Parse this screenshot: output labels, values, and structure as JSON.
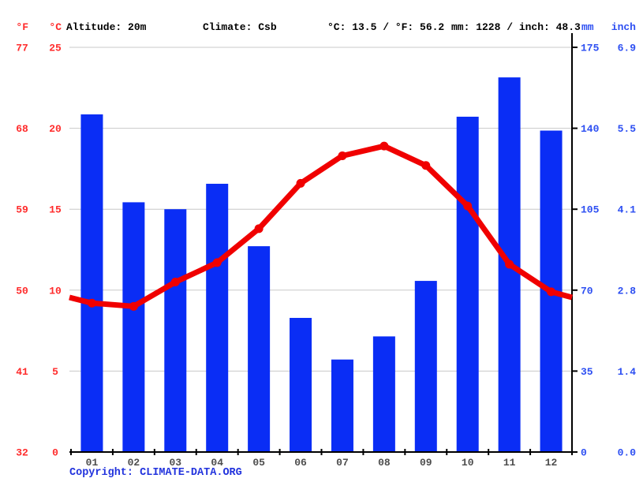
{
  "header": {
    "temp_f_label": "°F",
    "temp_c_label": "°C",
    "altitude": "Altitude: 20m",
    "climate": "Climate: Csb",
    "avg_temp": "°C: 13.5 / °F: 56.2",
    "precip_total": "mm: 1228 / inch: 48.3",
    "mm_label": "mm",
    "inch_label": "inch"
  },
  "chart_data": {
    "type": "bar",
    "subtype": "climograph: precipitation bars + temperature line",
    "categories": [
      "01",
      "02",
      "03",
      "04",
      "05",
      "06",
      "07",
      "08",
      "09",
      "10",
      "11",
      "12"
    ],
    "series": [
      {
        "name": "precipitation",
        "type": "bar",
        "unit": "mm",
        "values": [
          146,
          108,
          105,
          116,
          89,
          58,
          40,
          50,
          74,
          145,
          162,
          139
        ]
      },
      {
        "name": "temperature",
        "type": "line",
        "unit": "°C",
        "values": [
          9.2,
          9.0,
          10.5,
          11.7,
          13.8,
          16.6,
          18.3,
          18.9,
          17.7,
          15.2,
          11.6,
          9.9
        ]
      }
    ],
    "axes": {
      "temp_c_ticks": [
        "25",
        "20",
        "15",
        "10",
        "5",
        "0"
      ],
      "temp_f_ticks": [
        "77",
        "68",
        "59",
        "50",
        "41",
        "32"
      ],
      "precip_mm_ticks": [
        "175",
        "140",
        "105",
        "70",
        "35",
        "0"
      ],
      "precip_inch_ticks": [
        "6.9",
        "5.5",
        "4.1",
        "2.8",
        "1.4",
        "0.0"
      ],
      "temp_range_c": [
        0,
        25
      ],
      "precip_range_mm": [
        0,
        175
      ]
    },
    "grid": true,
    "legend_position": "none"
  },
  "colors": {
    "background": "#ffffff",
    "bar": "#0a2df5",
    "line": "#f00000",
    "temp_axis_label": "#ff2b2b",
    "precip_axis_label": "#2d4ff2",
    "header_text": "#000000",
    "month_label": "#4d4d4d",
    "grid": "#c8c8c8",
    "axis": "#000000",
    "copyright": "#2233dd"
  },
  "footer": {
    "copyright_prefix": "Copyright: ",
    "copyright_link": "CLIMATE-DATA.ORG"
  }
}
